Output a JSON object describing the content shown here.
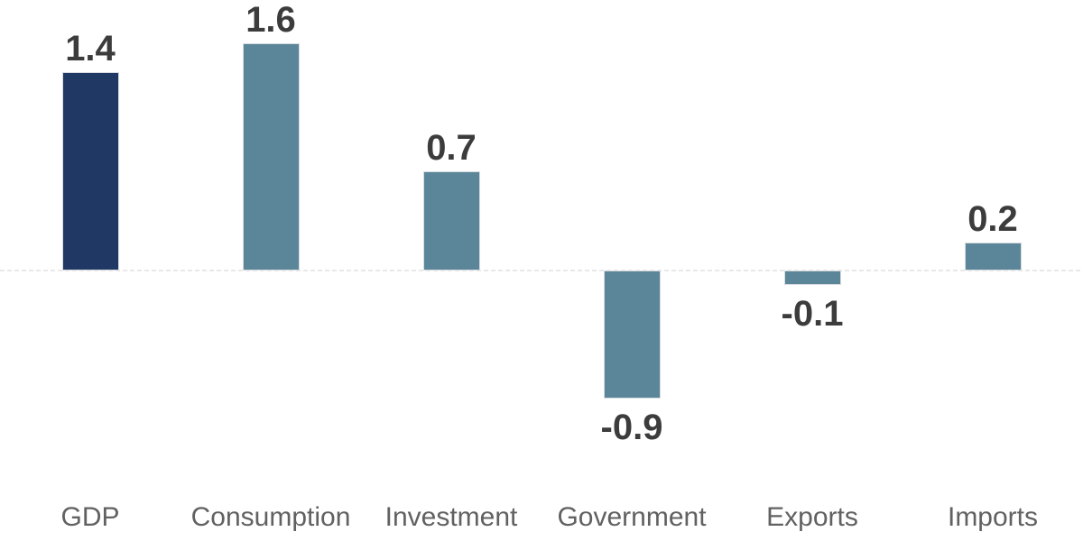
{
  "chart_data": {
    "type": "bar",
    "categories": [
      "GDP",
      "Consumption",
      "Investment",
      "Government",
      "Exports",
      "Imports"
    ],
    "values": [
      1.4,
      1.6,
      0.7,
      -0.9,
      -0.1,
      0.2
    ],
    "value_labels": [
      "1.4",
      "1.6",
      "0.7",
      "-0.9",
      "-0.1",
      "0.2"
    ],
    "title": "",
    "xlabel": "",
    "ylabel": "",
    "ylim": [
      -1.9,
      1.9
    ],
    "grid": false,
    "legend": "none",
    "baseline": 0,
    "baseline_style": "dashed",
    "bar_colors": [
      "#1f3864",
      "#5b8699",
      "#5b8699",
      "#5b8699",
      "#5b8699",
      "#5b8699"
    ],
    "colors": {
      "highlight_bar": "#1f3864",
      "default_bar": "#5b8699",
      "value_label_text": "#3c3c3c",
      "category_label_text": "#616161",
      "zero_line": "#e9e9e9",
      "bar_border": "#d7dbdf",
      "background": "#ffffff"
    }
  }
}
